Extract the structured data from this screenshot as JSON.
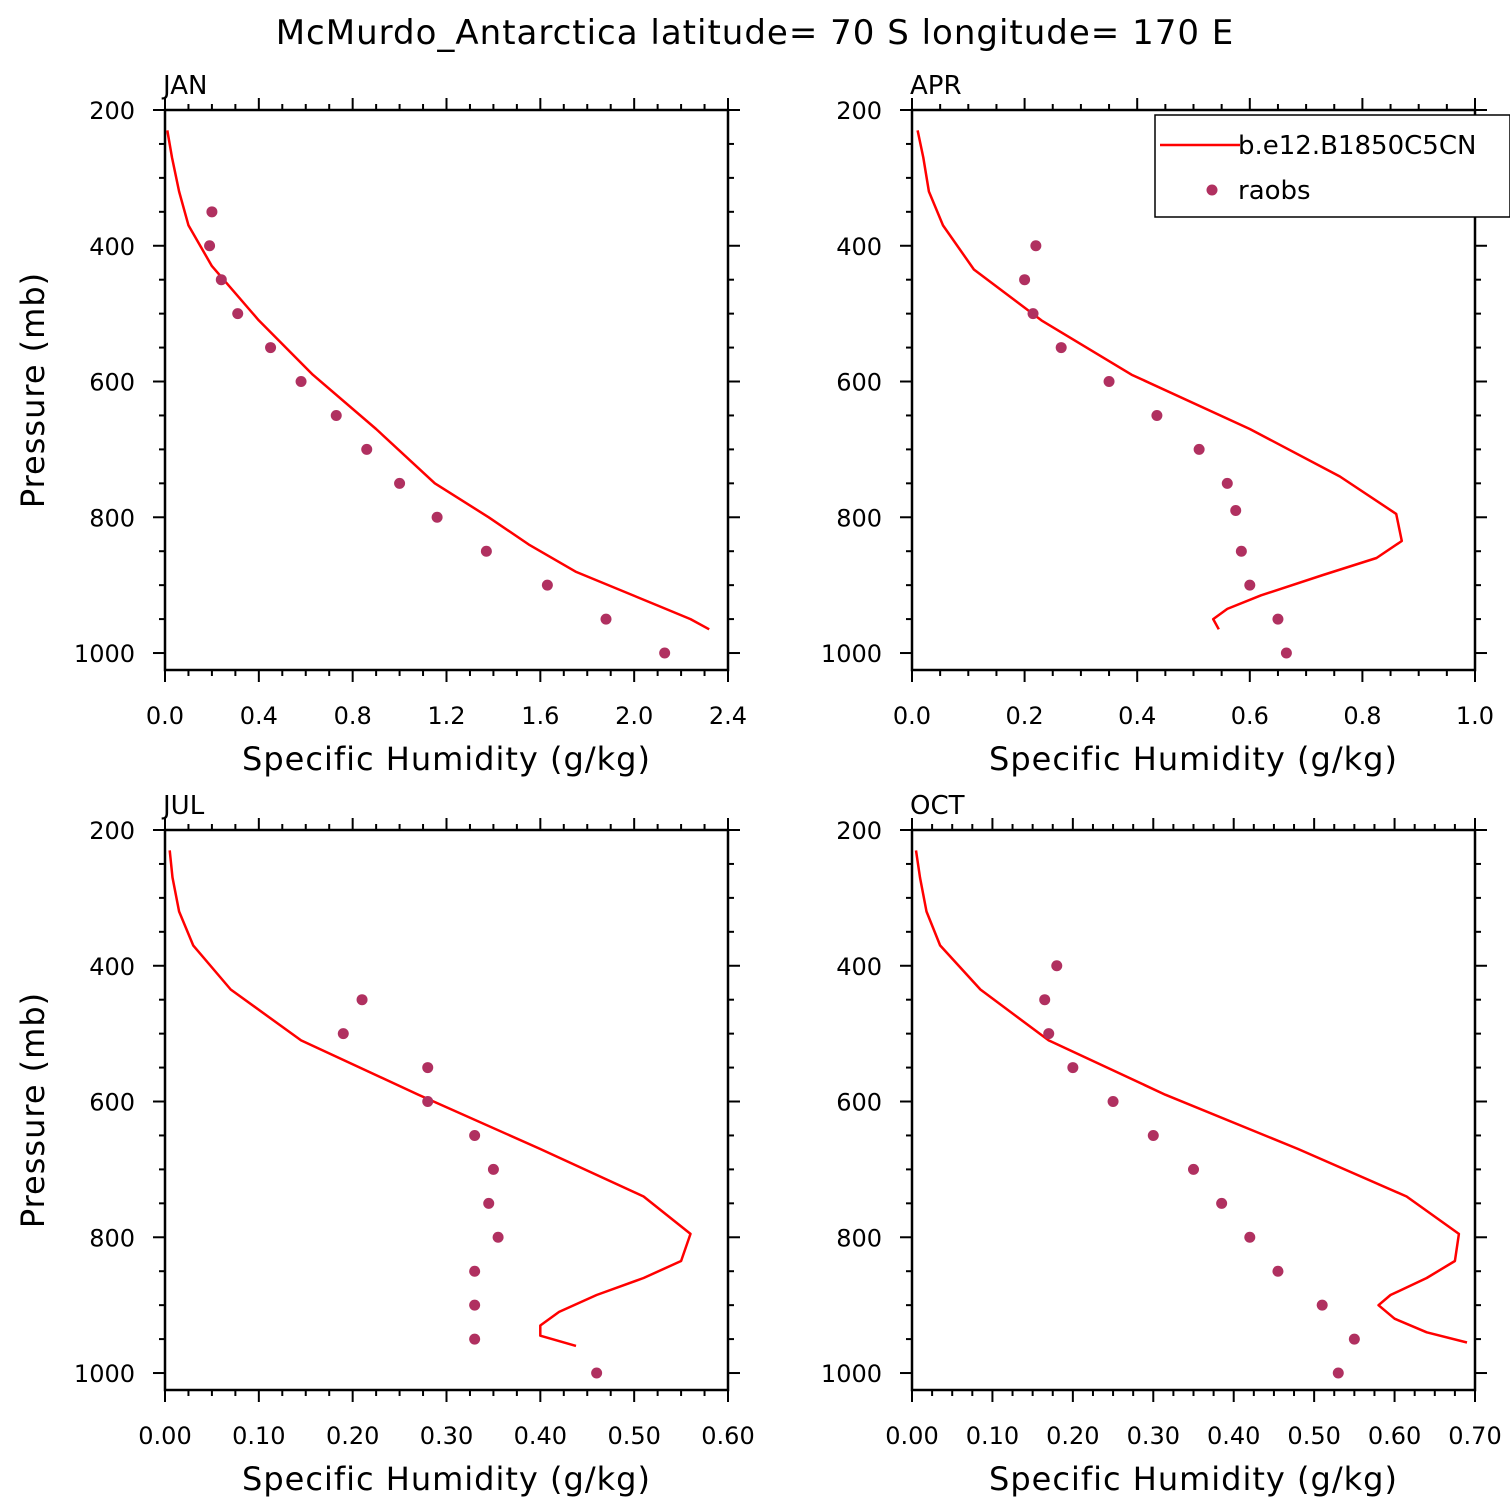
{
  "title": "McMurdo_Antarctica  latitude= 70 S longitude= 170 E",
  "colors": {
    "model": "#ff0000",
    "raobs": "#b03060"
  },
  "legend": {
    "model_label": "b.e12.B1850C5CN",
    "obs_label": "raobs"
  },
  "chart_data": [
    {
      "type": "line",
      "panel": "JAN",
      "xlabel": "Specific Humidity (g/kg)",
      "ylabel": "Pressure (mb)",
      "xlim": [
        0,
        2.4
      ],
      "xticks": [
        "0.0",
        "0.4",
        "0.8",
        "1.2",
        "1.6",
        "2.0",
        "2.4"
      ],
      "ylim": [
        200,
        1025
      ],
      "yticks": [
        "200",
        "400",
        "600",
        "800",
        "1000"
      ],
      "series": [
        {
          "name": "b.e12.B1850C5CN",
          "type": "line",
          "x": [
            0.01,
            0.03,
            0.06,
            0.1,
            0.2,
            0.4,
            0.63,
            0.9,
            1.15,
            1.38,
            1.55,
            1.75,
            2.1,
            2.24,
            2.32
          ],
          "y": [
            230,
            270,
            320,
            370,
            430,
            510,
            590,
            670,
            750,
            800,
            840,
            880,
            930,
            950,
            965
          ]
        },
        {
          "name": "raobs",
          "type": "scatter",
          "x": [
            0.2,
            0.19,
            0.24,
            0.31,
            0.45,
            0.58,
            0.73,
            0.86,
            1.0,
            1.16,
            1.37,
            1.63,
            1.88,
            2.13
          ],
          "y": [
            350,
            400,
            450,
            500,
            550,
            600,
            650,
            700,
            750,
            800,
            850,
            900,
            950,
            1000
          ]
        }
      ]
    },
    {
      "type": "line",
      "panel": "APR",
      "xlabel": "Specific Humidity (g/kg)",
      "ylabel": "",
      "xlim": [
        0,
        1.0
      ],
      "xticks": [
        "0.0",
        "0.2",
        "0.4",
        "0.6",
        "0.8",
        "1.0"
      ],
      "ylim": [
        200,
        1025
      ],
      "yticks": [
        "200",
        "400",
        "600",
        "800",
        "1000"
      ],
      "series": [
        {
          "name": "b.e12.B1850C5CN",
          "type": "line",
          "x": [
            0.01,
            0.02,
            0.03,
            0.055,
            0.11,
            0.23,
            0.39,
            0.6,
            0.76,
            0.86,
            0.87,
            0.825,
            0.73,
            0.62,
            0.56,
            0.535,
            0.545
          ],
          "y": [
            230,
            270,
            320,
            370,
            435,
            510,
            590,
            670,
            740,
            795,
            835,
            860,
            885,
            915,
            935,
            950,
            965
          ]
        },
        {
          "name": "raobs",
          "type": "scatter",
          "x": [
            0.22,
            0.2,
            0.215,
            0.265,
            0.35,
            0.435,
            0.51,
            0.56,
            0.575,
            0.585,
            0.6,
            0.65,
            0.665
          ],
          "y": [
            400,
            450,
            500,
            550,
            600,
            650,
            700,
            750,
            790,
            850,
            900,
            950,
            1000
          ]
        }
      ]
    },
    {
      "type": "line",
      "panel": "JUL",
      "xlabel": "Specific Humidity (g/kg)",
      "ylabel": "Pressure (mb)",
      "xlim": [
        0,
        0.6
      ],
      "xticks": [
        "0.00",
        "0.10",
        "0.20",
        "0.30",
        "0.40",
        "0.50",
        "0.60"
      ],
      "ylim": [
        200,
        1025
      ],
      "yticks": [
        "200",
        "400",
        "600",
        "800",
        "1000"
      ],
      "series": [
        {
          "name": "b.e12.B1850C5CN",
          "type": "line",
          "x": [
            0.005,
            0.008,
            0.015,
            0.03,
            0.07,
            0.145,
            0.27,
            0.4,
            0.51,
            0.56,
            0.55,
            0.51,
            0.46,
            0.42,
            0.4,
            0.4,
            0.438
          ],
          "y": [
            230,
            270,
            320,
            370,
            435,
            510,
            590,
            670,
            740,
            795,
            835,
            860,
            885,
            910,
            930,
            945,
            960
          ]
        },
        {
          "name": "raobs",
          "type": "scatter",
          "x": [
            0.21,
            0.19,
            0.28,
            0.28,
            0.33,
            0.35,
            0.345,
            0.355,
            0.33,
            0.33,
            0.33,
            0.46
          ],
          "y": [
            450,
            500,
            550,
            600,
            650,
            700,
            750,
            800,
            850,
            900,
            950,
            1000
          ]
        }
      ]
    },
    {
      "type": "line",
      "panel": "OCT",
      "xlabel": "Specific Humidity (g/kg)",
      "ylabel": "",
      "xlim": [
        0,
        0.7
      ],
      "xticks": [
        "0.00",
        "0.10",
        "0.20",
        "0.30",
        "0.40",
        "0.50",
        "0.60",
        "0.70"
      ],
      "ylim": [
        200,
        1025
      ],
      "yticks": [
        "200",
        "400",
        "600",
        "800",
        "1000"
      ],
      "series": [
        {
          "name": "b.e12.B1850C5CN",
          "type": "line",
          "x": [
            0.005,
            0.01,
            0.018,
            0.035,
            0.085,
            0.17,
            0.315,
            0.48,
            0.615,
            0.68,
            0.675,
            0.64,
            0.595,
            0.58,
            0.6,
            0.64,
            0.69
          ],
          "y": [
            230,
            270,
            320,
            370,
            435,
            510,
            590,
            670,
            740,
            795,
            835,
            860,
            885,
            900,
            920,
            940,
            955
          ]
        },
        {
          "name": "raobs",
          "type": "scatter",
          "x": [
            0.18,
            0.165,
            0.17,
            0.2,
            0.25,
            0.3,
            0.35,
            0.385,
            0.42,
            0.455,
            0.51,
            0.55,
            0.53
          ],
          "y": [
            400,
            450,
            500,
            550,
            600,
            650,
            700,
            750,
            800,
            850,
            900,
            950,
            1000
          ]
        }
      ]
    }
  ]
}
